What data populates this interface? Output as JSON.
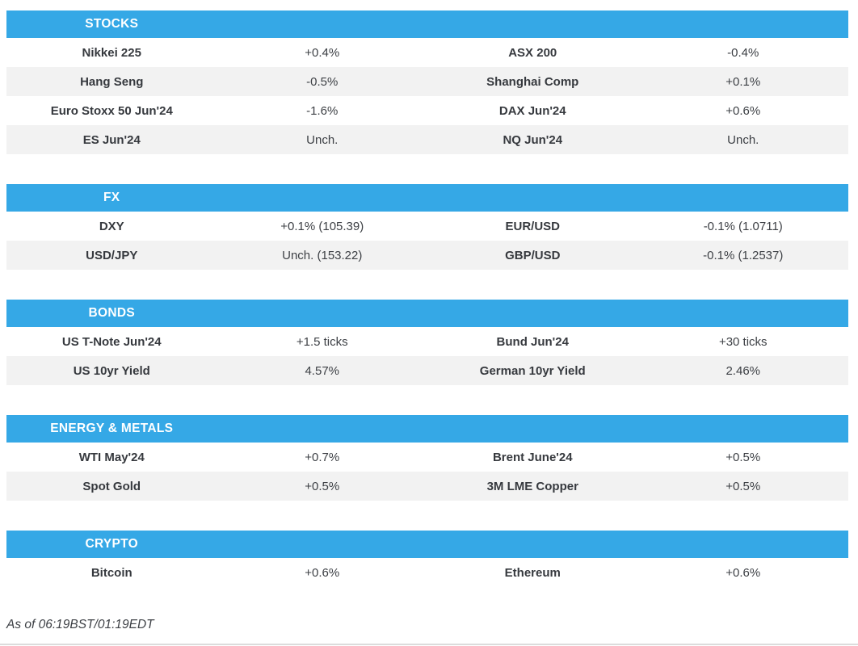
{
  "theme": {
    "accent_color": "#35a8e6",
    "stripe_color": "#f2f2f2",
    "text_color": "#3d4045"
  },
  "sections": [
    {
      "title": "STOCKS",
      "rows": [
        {
          "name_left": "Nikkei 225",
          "value_left": "+0.4%",
          "name_right": "ASX 200",
          "value_right": "-0.4%"
        },
        {
          "name_left": "Hang Seng",
          "value_left": "-0.5%",
          "name_right": "Shanghai Comp",
          "value_right": "+0.1%"
        },
        {
          "name_left": "Euro Stoxx 50 Jun'24",
          "value_left": "-1.6%",
          "name_right": "DAX Jun'24",
          "value_right": "+0.6%"
        },
        {
          "name_left": "ES Jun'24",
          "value_left": "Unch.",
          "name_right": "NQ Jun'24",
          "value_right": "Unch."
        }
      ]
    },
    {
      "title": "FX",
      "rows": [
        {
          "name_left": "DXY",
          "value_left": "+0.1% (105.39)",
          "name_right": "EUR/USD",
          "value_right": "-0.1% (1.0711)"
        },
        {
          "name_left": "USD/JPY",
          "value_left": "Unch. (153.22)",
          "name_right": "GBP/USD",
          "value_right": "-0.1% (1.2537)"
        }
      ]
    },
    {
      "title": "BONDS",
      "rows": [
        {
          "name_left": "US T-Note Jun'24",
          "value_left": "+1.5 ticks",
          "name_right": "Bund Jun'24",
          "value_right": "+30 ticks"
        },
        {
          "name_left": "US 10yr Yield",
          "value_left": "4.57%",
          "name_right": "German 10yr Yield",
          "value_right": "2.46%"
        }
      ]
    },
    {
      "title": "ENERGY & METALS",
      "rows": [
        {
          "name_left": "WTI May'24",
          "value_left": "+0.7%",
          "name_right": "Brent June'24",
          "value_right": "+0.5%"
        },
        {
          "name_left": "Spot Gold",
          "value_left": "+0.5%",
          "name_right": "3M LME Copper",
          "value_right": "+0.5%"
        }
      ]
    },
    {
      "title": "CRYPTO",
      "rows": [
        {
          "name_left": "Bitcoin",
          "value_left": "+0.6%",
          "name_right": "Ethereum",
          "value_right": "+0.6%"
        }
      ]
    }
  ],
  "footer": {
    "as_of": "As of 06:19BST/01:19EDT"
  }
}
